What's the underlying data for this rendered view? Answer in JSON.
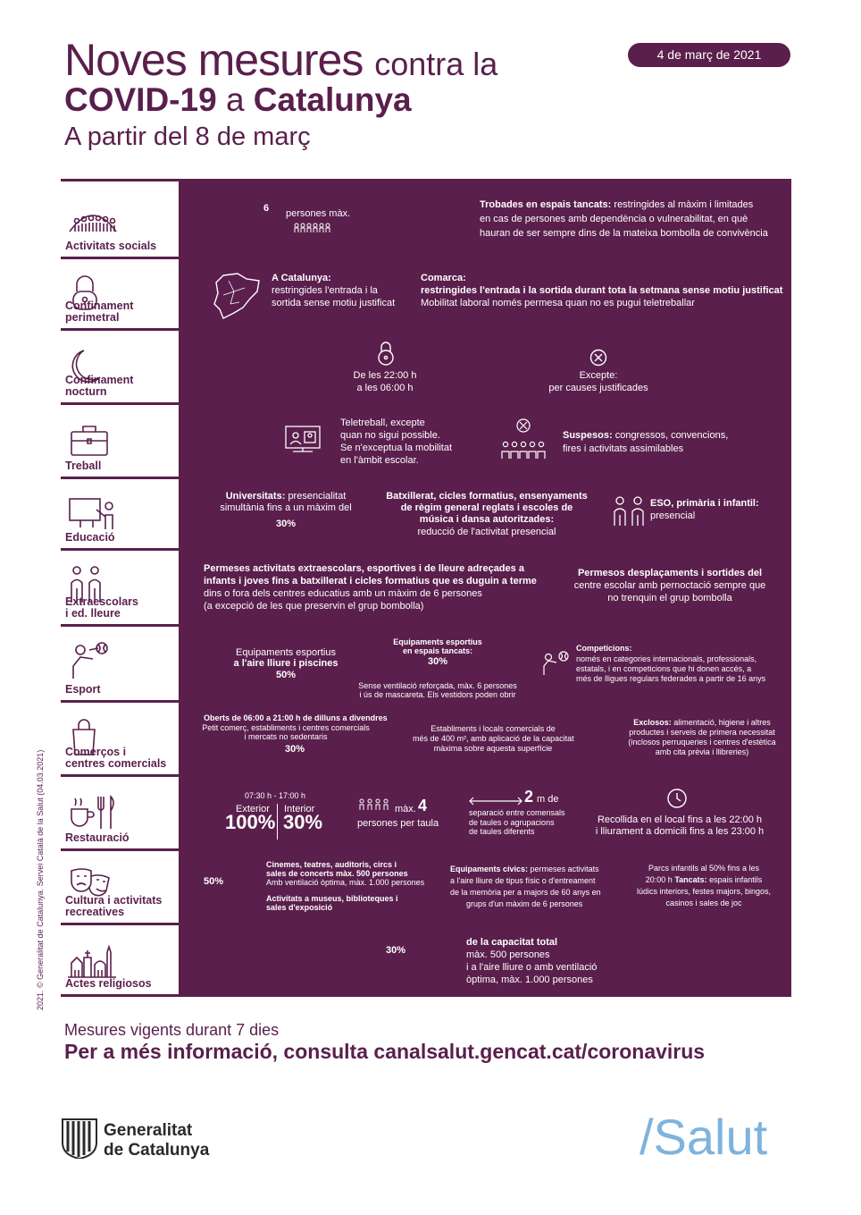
{
  "header": {
    "title_big": "Noves mesures",
    "title_small": "contra la",
    "title_bold": "COVID-19",
    "title_mid": "a",
    "title_bold2": "Catalunya",
    "subtitle": "A partir del 8 de març",
    "date": "4 de març de 2021"
  },
  "rows": {
    "socials": {
      "label": "Activitats socials",
      "num": "6",
      "num_label": "persones màx.",
      "text_bold": "Trobades en espais tancats:",
      "text_1": "restringides al màxim i limitades",
      "text_2": "en cas de persones amb dependència o vulnerabilitat, en què",
      "text_3": "hauran de ser sempre dins de la mateixa bombolla de convivència"
    },
    "perimetral": {
      "label_1": "Confinament",
      "label_2": "perimetral",
      "cat_title": "A Catalunya:",
      "cat_1": "restringides l'entrada i la",
      "cat_2": "sortida sense motiu justificat",
      "com_title": "Comarca:",
      "com_1": "restringides l'entrada i la sortida durant tota la setmana sense motiu justificat",
      "com_2": "Mobilitat laboral només permesa quan no es pugui teletreballar"
    },
    "nocturn": {
      "label_1": "Confinament",
      "label_2": "nocturn",
      "time_1": "De les 22:00 h",
      "time_2": "a les 06:00 h",
      "exc_1": "Excepte:",
      "exc_2": "per causes justificades"
    },
    "treball": {
      "label": "Treball",
      "tele_1": "Teletreball, excepte",
      "tele_2": "quan no sigui possible.",
      "tele_3": "Se n'exceptua la mobilitat",
      "tele_4": "en l'àmbit escolar.",
      "susp_bold": "Suspesos:",
      "susp_1": "congressos, convencions,",
      "susp_2": "fires i activitats assimilables"
    },
    "educacio": {
      "label": "Educació",
      "uni_bold": "Universitats:",
      "uni_1": "presencialitat",
      "uni_2": "simultània fins a un màxim del",
      "uni_pct": "30%",
      "bat_1": "Batxillerat, cicles formatius, ensenyaments",
      "bat_2": "de règim general reglats i escoles de",
      "bat_3": "música i dansa autoritzades:",
      "bat_4": "reducció de l'activitat presencial",
      "eso_1": "ESO, primària i infantil:",
      "eso_2": "presencial"
    },
    "extra": {
      "label_1": "Extraescolars",
      "label_2": "i ed. lleure",
      "p_1": "Permeses activitats extraescolars, esportives i de lleure adreçades a",
      "p_2": "infants i joves fins a batxillerat i cicles formatius que es duguin a terme",
      "p_3": "dins o fora dels centres educatius amb un màxim de 6 persones",
      "p_4": "(a excepció de les que preservin el grup bombolla)",
      "d_1": "Permesos desplaçaments i sortides del",
      "d_2": "centre escolar amb pernoctació sempre que",
      "d_3": "no trenquin el grup bombolla"
    },
    "esport": {
      "label": "Esport",
      "out_1": "Equipaments esportius",
      "out_2": "a l'aire lliure i piscines",
      "out_pct": "50%",
      "in_1": "Equipaments esportius",
      "in_2": "en espais tancats:",
      "in_pct": "30%",
      "in_3": "Sense ventilació reforçada, màx. 6 persones",
      "in_4": "i ús de mascareta. Els vestidors poden obrir",
      "comp_title": "Competicions:",
      "comp_1": "només en categories internacionals, professionals,",
      "comp_2": "estatals, i en competicions que hi donen accés, a",
      "comp_3": "més de lligues regulars federades a partir de 16 anys"
    },
    "comercos": {
      "label_1": "Comerços i",
      "label_2": "centres comercials",
      "o_1": "Oberts de 06:00 a 21:00 h de dilluns a divendres",
      "o_2": "Petit comerç, establiments i centres comercials",
      "o_3": "i mercats no sedentaris",
      "o_pct": "30%",
      "e_1": "Establiments i locals comercials de",
      "e_2": "més de 400 m², amb aplicació de la capacitat",
      "e_3": "màxima sobre aquesta superfície",
      "x_bold": "Exclosos:",
      "x_1": "alimentació, higiene i altres",
      "x_2": "productes i serveis de primera necessitat",
      "x_3": "(inclosos perruqueries i centres d'estètica",
      "x_4": "amb cita prèvia i llibreries)"
    },
    "restauracio": {
      "label": "Restauració",
      "hours": "07:30 h - 17:00 h",
      "ext": "Exterior",
      "int": "Interior",
      "ext_pct": "100%",
      "int_pct": "30%",
      "max_label": "màx.",
      "max_num": "4",
      "per_table": "persones per taula",
      "dist_num": "2",
      "dist_unit": "m de",
      "dist_1": "separació entre comensals",
      "dist_2": "de taules o agrupacions",
      "dist_3": "de taules diferents",
      "rec_1": "Recollida en el local fins a les 22:00 h",
      "rec_2": "i lliurament a domicili fins a les 23:00 h"
    },
    "cultura": {
      "label_1": "Cultura i activitats",
      "label_2": "recreatives",
      "pct": "50%",
      "c_1": "Cinemes, teatres, auditoris, circs i",
      "c_2": "sales de concerts màx. 500 persones",
      "c_3": "Amb ventilació òptima, màx. 1.000 persones",
      "c_4": "Activitats a museus, biblioteques i",
      "c_5": "sales d'exposició",
      "eq_bold": "Equipaments cívics:",
      "eq_1": "permeses activitats",
      "eq_2": "a l'aire lliure de tipus físic o d'entreament",
      "eq_3": "de la memòria per a majors de 60 anys en",
      "eq_4": "grups d'un màxim de 6 persones",
      "pk_1": "Parcs infantils al 50% fins a les",
      "pk_2_pre": "20:00 h",
      "pk_2_bold": "Tancats:",
      "pk_2_post": "espais infantils",
      "pk_3": "lúdics interiors, festes majors, bingos,",
      "pk_4": "casinos i sales de joc"
    },
    "religiosos": {
      "label": "Actes religiosos",
      "pct": "30%",
      "r_1": "de la capacitat total",
      "r_2": "màx. 500 persones",
      "r_3": "i a l'aire lliure o amb ventilació",
      "r_4": "òptima, màx. 1.000 persones"
    }
  },
  "side_credit": "2021. © Generalitat de Catalunya. Servei Català de la Salut (04.03.2021)",
  "footer": {
    "line1": "Mesures vigents durant 7 dies",
    "line2_pre": "Per a més informació, consulta",
    "line2_link": "canalsalut.gencat.cat/coronavirus",
    "logo_1": "Generalitat",
    "logo_2": "de Catalunya",
    "salut": "/Salut"
  },
  "colors": {
    "purple": "#5a1f4c",
    "light_blue": "#7eb3de"
  }
}
